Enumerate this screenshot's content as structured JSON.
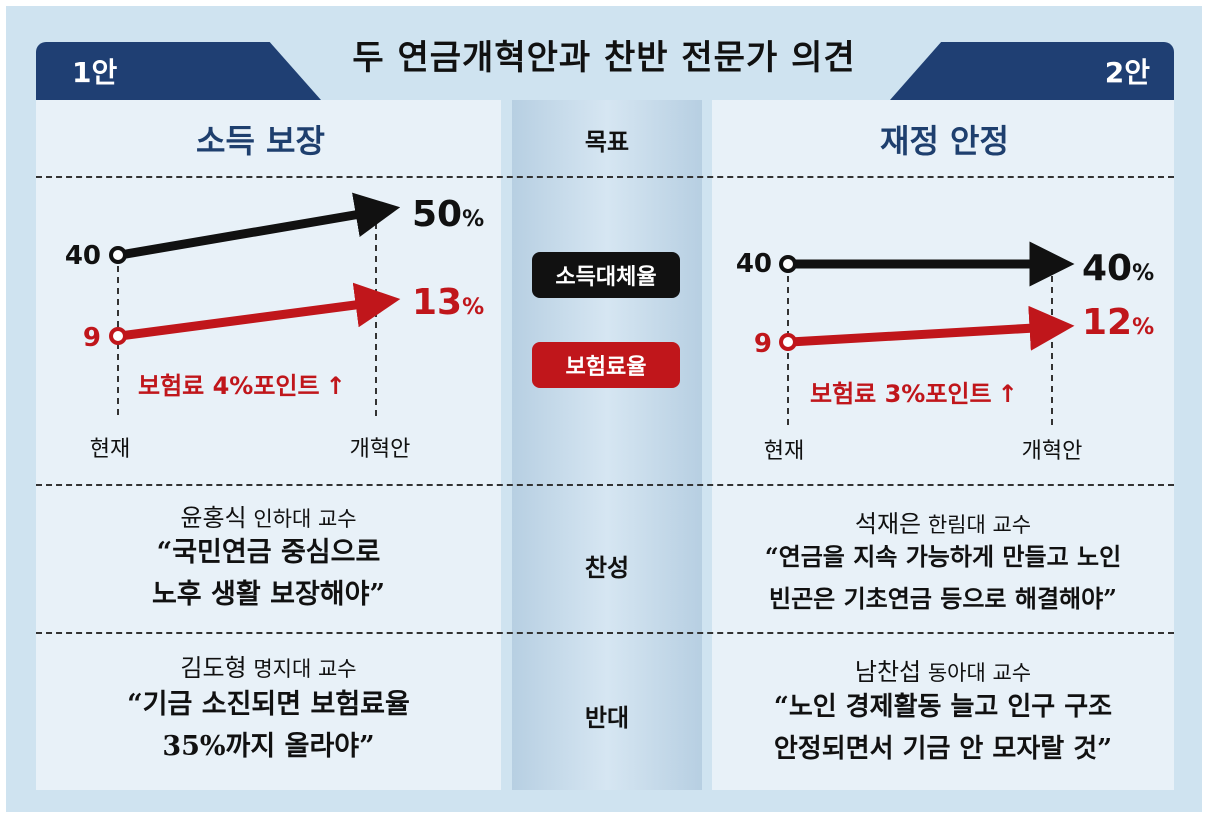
{
  "title": "두 연금개혁안과 찬반 전문가 의견",
  "plan1": {
    "tab": "1안",
    "goal": "소득 보장",
    "chart": {
      "replacement": {
        "from": 40,
        "to": 50,
        "to_label": "50",
        "unit": "%"
      },
      "contribution": {
        "from": 9,
        "to": 13,
        "to_label": "13",
        "unit": "%"
      },
      "from_label_black": "40",
      "from_label_red": "9",
      "note": "보험료 4%포인트",
      "note_arrow": "↑",
      "x_labels": [
        "현재",
        "개혁안"
      ]
    },
    "pro": {
      "name": "윤홍식",
      "affil": "인하대 교수",
      "quote": [
        "“국민연금 중심으로",
        "노후 생활 보장해야”"
      ]
    },
    "con": {
      "name": "김도형",
      "affil": "명지대 교수",
      "quote": [
        "“기금 소진되면 보험료율",
        "35%까지 올라야”"
      ]
    }
  },
  "plan2": {
    "tab": "2안",
    "goal": "재정 안정",
    "chart": {
      "replacement": {
        "from": 40,
        "to": 40,
        "to_label": "40",
        "unit": "%"
      },
      "contribution": {
        "from": 9,
        "to": 12,
        "to_label": "12",
        "unit": "%"
      },
      "from_label_black": "40",
      "from_label_red": "9",
      "note": "보험료 3%포인트",
      "note_arrow": "↑",
      "x_labels": [
        "현재",
        "개혁안"
      ]
    },
    "pro": {
      "name": "석재은",
      "affil": "한림대 교수",
      "quote": [
        "“연금을 지속 가능하게 만들고 노인",
        "빈곤은 기초연금 등으로 해결해야”"
      ]
    },
    "con": {
      "name": "남찬섭",
      "affil": "동아대 교수",
      "quote": [
        "“노인 경제활동 늘고 인구 구조",
        "안정되면서 기금 안 모자랄 것”"
      ]
    }
  },
  "middle": {
    "goal_label": "목표",
    "legend_black": "소득대체율",
    "legend_red": "보험료율",
    "pro_label": "찬성",
    "con_label": "반대"
  },
  "colors": {
    "navy": "#1f3f73",
    "header_text": "#1e3f6e",
    "black": "#111111",
    "red": "#c0161b",
    "panel": "#e8f1f8"
  }
}
